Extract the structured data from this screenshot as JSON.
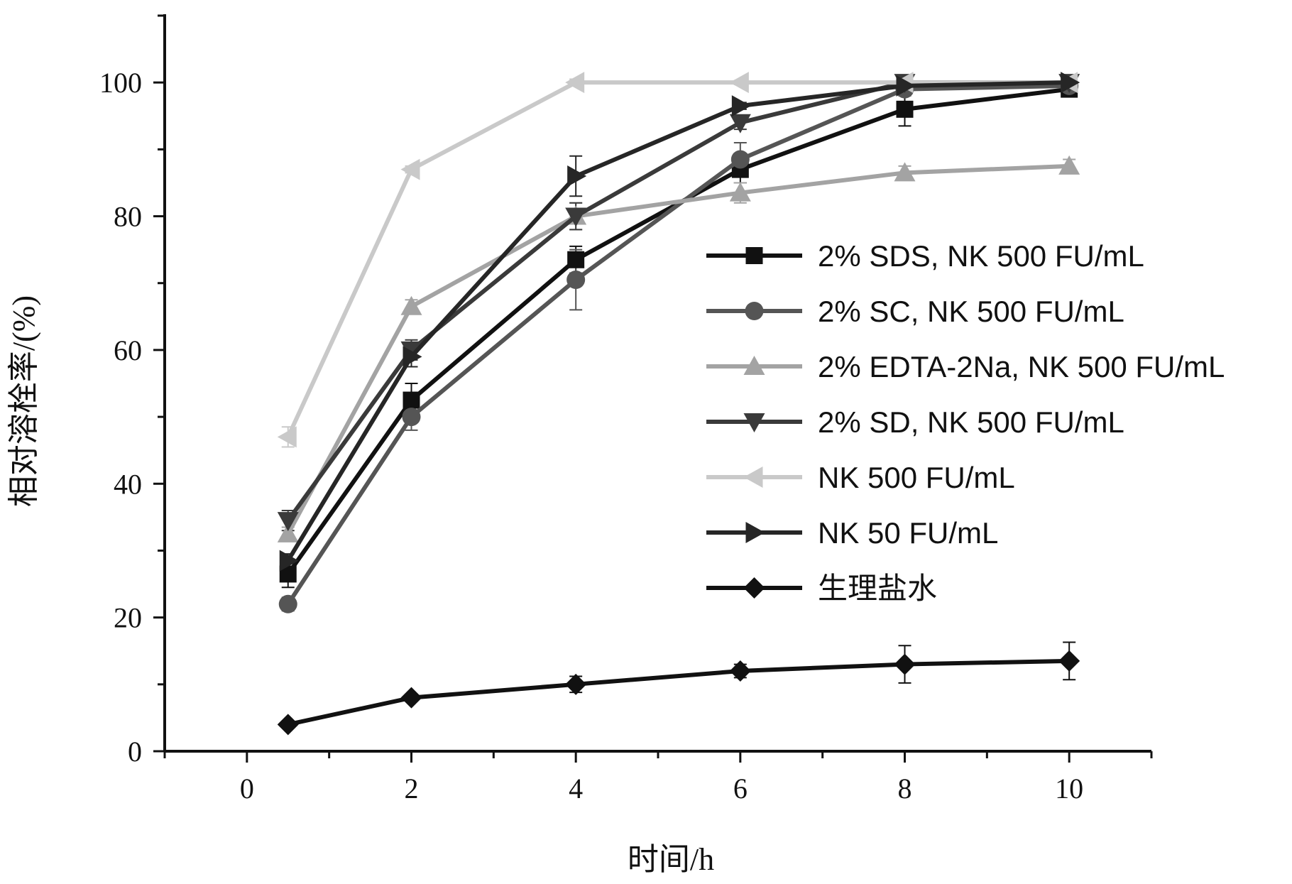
{
  "chart_data": {
    "type": "line",
    "title": "",
    "xlabel": "时间/h",
    "ylabel": "相对溶栓率/(%)",
    "xlim": [
      -1,
      11
    ],
    "ylim": [
      0,
      110
    ],
    "x_ticks": [
      0,
      2,
      4,
      6,
      8,
      10
    ],
    "y_ticks": [
      0,
      20,
      40,
      60,
      80,
      100
    ],
    "legend_position": "right-middle",
    "grid": false,
    "x": [
      0.5,
      2,
      4,
      6,
      8,
      10
    ],
    "series": [
      {
        "name": "2% SDS, NK 500 FU/mL",
        "marker": "square",
        "color": "#111111",
        "values": [
          26.5,
          52.5,
          73.5,
          87,
          96,
          99
        ],
        "errors": [
          2,
          2.5,
          2,
          2,
          2.5,
          1
        ]
      },
      {
        "name": "2% SC, NK 500 FU/mL",
        "marker": "circle",
        "color": "#555555",
        "values": [
          22,
          50,
          70.5,
          88.5,
          99,
          99.5
        ],
        "errors": [
          1,
          2,
          4.5,
          2.5,
          1,
          0.5
        ]
      },
      {
        "name": "2% EDTA-2Na, NK 500 FU/mL",
        "marker": "triangle-up",
        "color": "#a3a3a3",
        "values": [
          32.5,
          66.5,
          80,
          83.5,
          86.5,
          87.5
        ],
        "errors": [
          1,
          1,
          2,
          1.5,
          1,
          1
        ]
      },
      {
        "name": "2% SD, NK 500 FU/mL",
        "marker": "triangle-down",
        "color": "#3a3a3a",
        "values": [
          34.5,
          60,
          80,
          94,
          100,
          100
        ],
        "errors": [
          1.5,
          1.5,
          2,
          1,
          0.5,
          0.5
        ]
      },
      {
        "name": "NK 500 FU/mL",
        "marker": "triangle-left",
        "color": "#c9c9c9",
        "values": [
          47,
          87,
          100,
          100,
          100,
          100
        ],
        "errors": [
          1.5,
          0.5,
          0.5,
          0.3,
          0.3,
          0.3
        ]
      },
      {
        "name": "NK 50 FU/mL",
        "marker": "triangle-right",
        "color": "#262626",
        "values": [
          28.5,
          59,
          86,
          96.5,
          99.5,
          100
        ],
        "errors": [
          1,
          1.5,
          3,
          0.5,
          0.5,
          0.5
        ]
      },
      {
        "name": "生理盐水",
        "marker": "diamond",
        "color": "#111111",
        "values": [
          4,
          8,
          10,
          12,
          13,
          13.5
        ],
        "errors": [
          0.5,
          0.5,
          1.2,
          1,
          2.8,
          2.8
        ]
      }
    ]
  }
}
